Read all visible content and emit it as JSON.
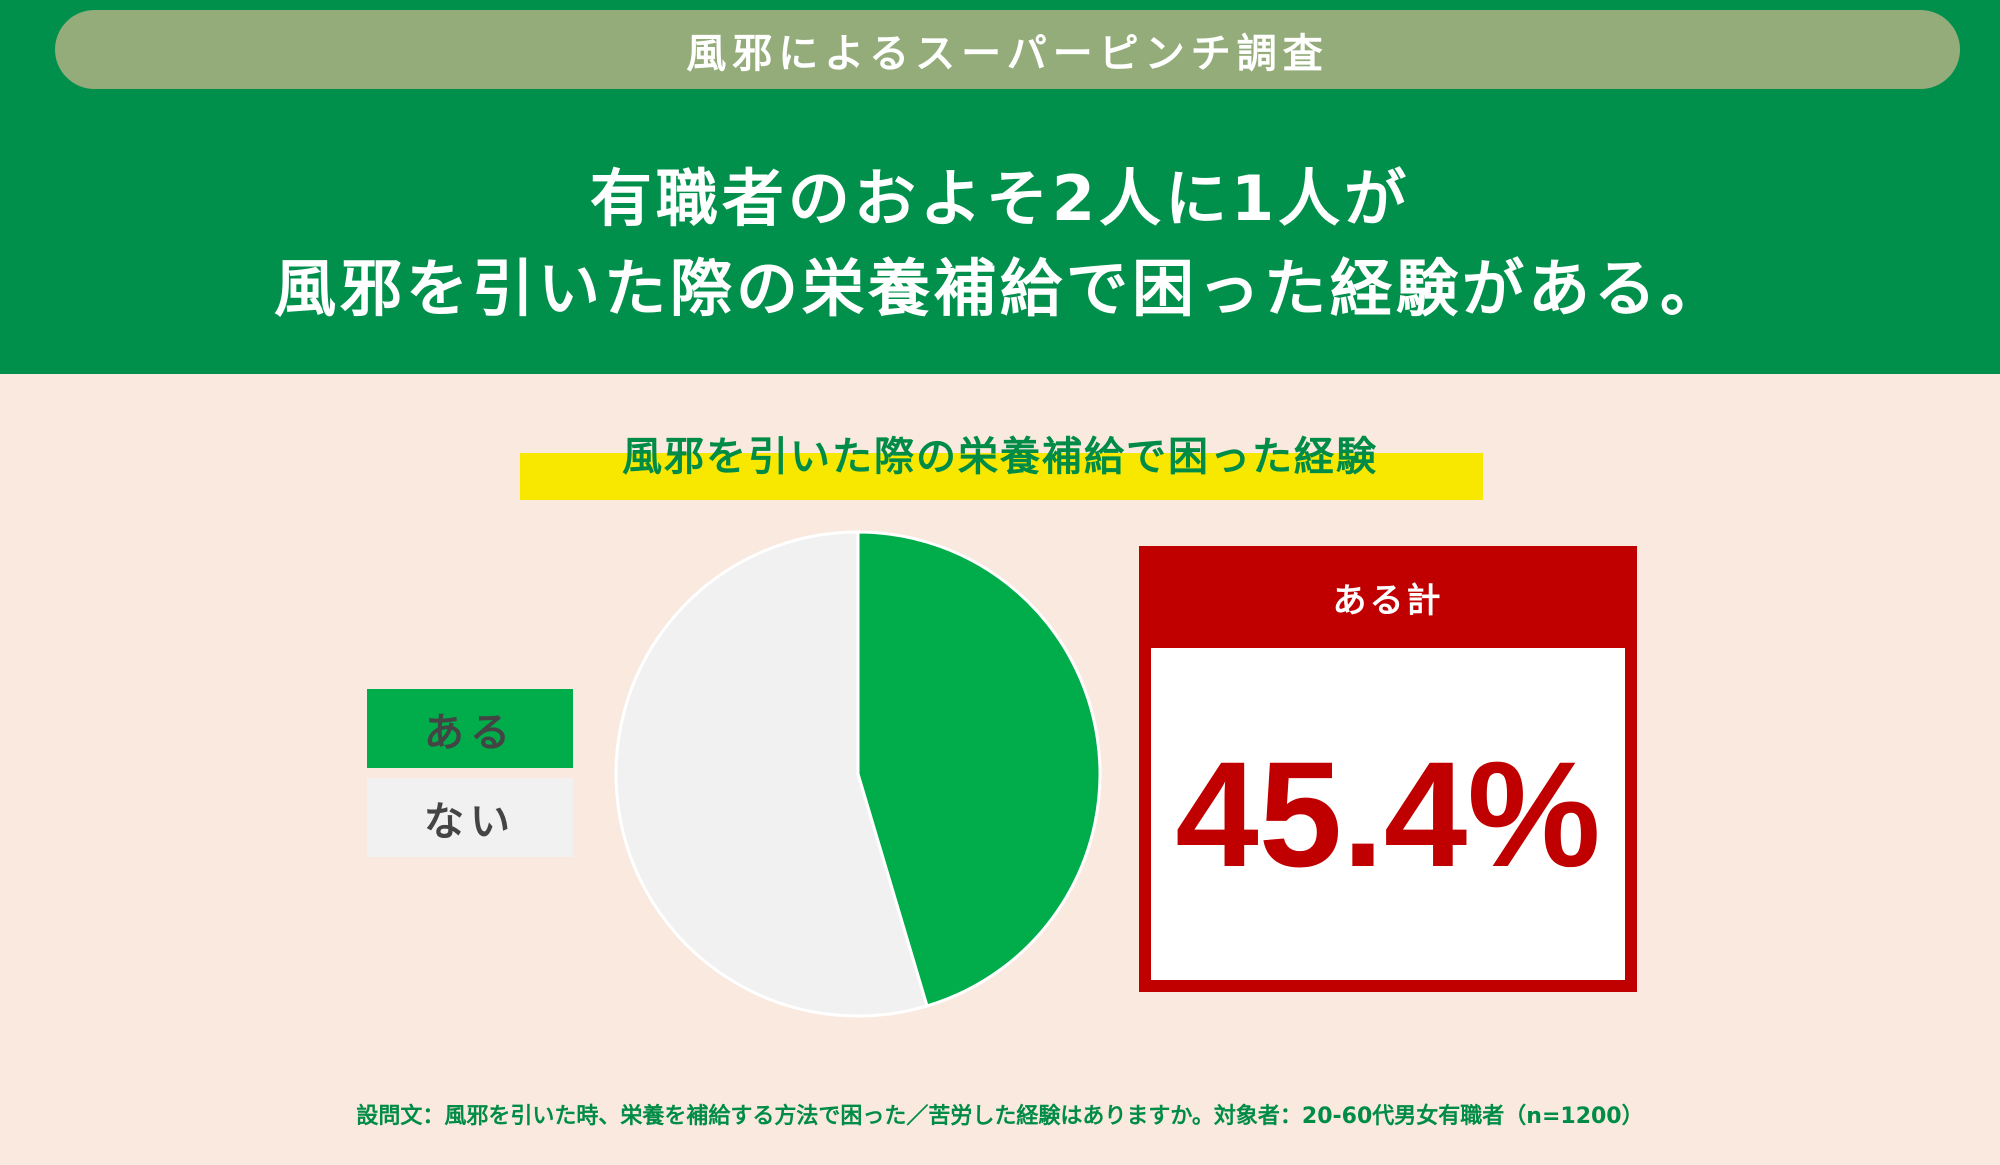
{
  "header": {
    "banner": "風邪によるスーパーピンチ調査",
    "headline_line1": "有職者のおよそ2人に1人が",
    "headline_line2": "風邪を引いた際の栄養補給で困った経験がある。"
  },
  "chart_data": {
    "type": "pie",
    "title": "風邪を引いた際の栄養補給で困った経験",
    "categories": [
      "ある",
      "ない"
    ],
    "values": [
      45.4,
      54.6
    ],
    "colors": [
      "#00ad4a",
      "#f1f1f1"
    ],
    "legend": "left"
  },
  "callout": {
    "label": "ある計",
    "value": "45.4%",
    "color": "#c00000"
  },
  "footer": {
    "note": "設問文：風邪を引いた時、栄養を補給する方法で困った／苦労した経験はありますか。対象者：20-60代男女有職者（n=1200）"
  }
}
